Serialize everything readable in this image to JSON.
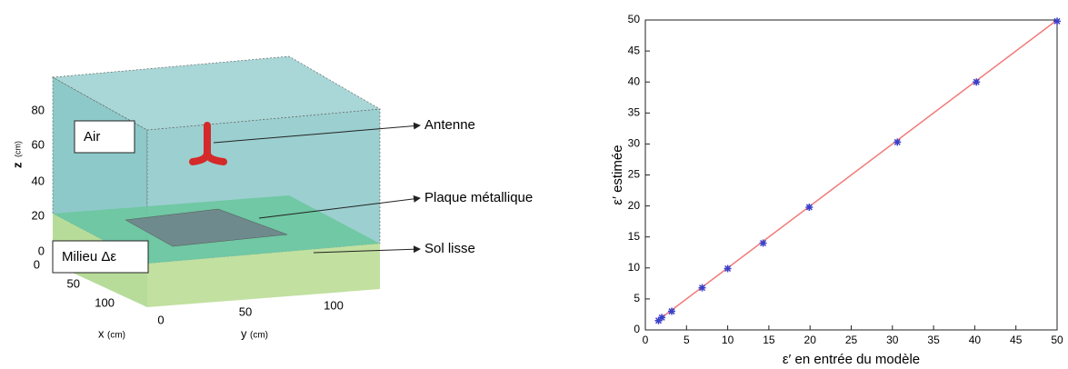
{
  "diagram": {
    "regions": [
      "Air",
      "Milieu Δε"
    ],
    "callouts": [
      "Antenne",
      "Plaque métallique",
      "Sol lisse"
    ],
    "z_axis": {
      "label": "z",
      "unit": "(cm)",
      "ticks": [
        0,
        20,
        40,
        60,
        80
      ]
    },
    "x_axis": {
      "label": "x",
      "unit": "(cm)",
      "ticks": [
        0,
        50,
        100
      ]
    },
    "y_axis": {
      "label": "y",
      "unit": "(cm)",
      "ticks": [
        0,
        50,
        100
      ]
    }
  },
  "chart_data": {
    "type": "scatter",
    "x_label": "ε′ en entrée du modèle",
    "y_label": "ε′ estimée",
    "x": [
      1.6,
      2,
      3.2,
      6.9,
      10,
      14.3,
      19.9,
      30.6,
      40.2,
      50
    ],
    "values": [
      1.5,
      2,
      3,
      6.8,
      9.9,
      14,
      19.8,
      30.3,
      40,
      49.8
    ],
    "color": "#3a3fc8",
    "fit_line": {
      "x": [
        1.5,
        50
      ],
      "values": [
        1.5,
        50
      ],
      "color": "#f07a7a"
    },
    "xlim": [
      0,
      50
    ],
    "ylim": [
      0,
      50
    ],
    "xticks": [
      0,
      5,
      10,
      15,
      20,
      25,
      30,
      35,
      40,
      45,
      50
    ],
    "yticks": [
      0,
      5,
      10,
      15,
      20,
      25,
      30,
      35,
      40,
      45,
      50
    ],
    "grid": false
  }
}
